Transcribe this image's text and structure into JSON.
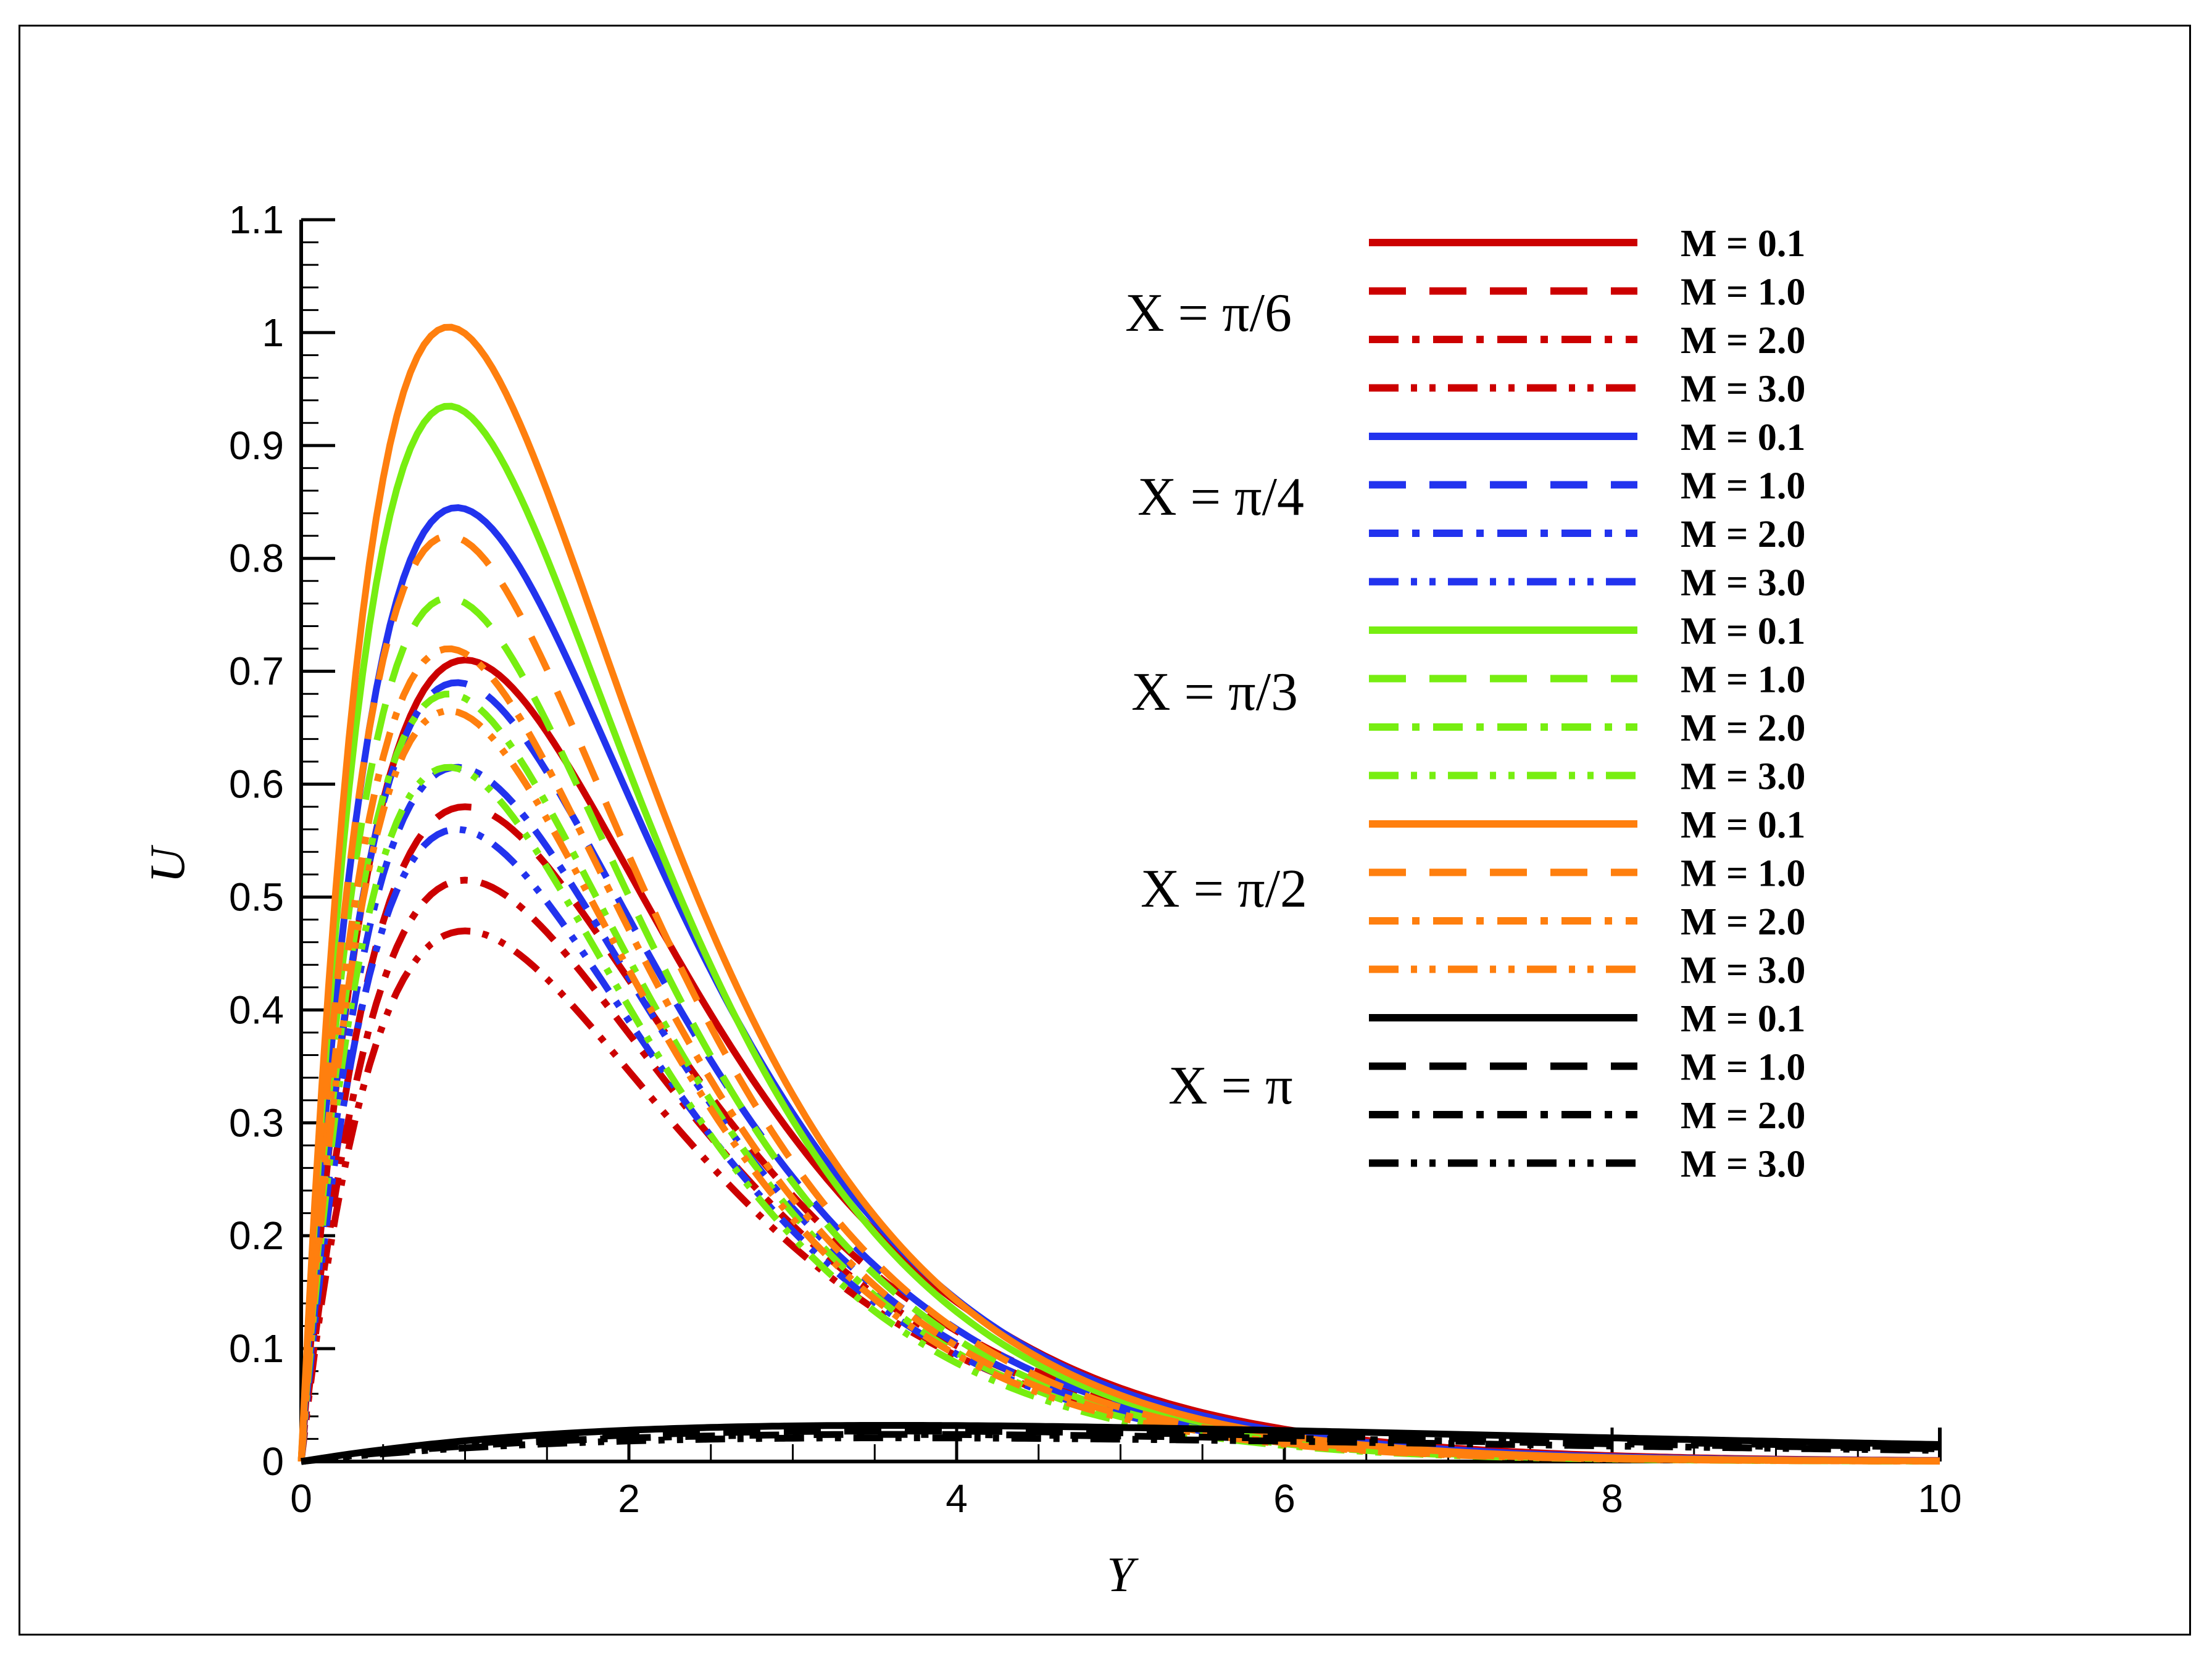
{
  "chart_data": {
    "type": "line",
    "xlabel": "Y",
    "ylabel": "U",
    "xlim": [
      0,
      10
    ],
    "ylim": [
      0,
      1.1
    ],
    "x_ticks": [
      "0",
      "2",
      "4",
      "6",
      "8",
      "10"
    ],
    "y_ticks": [
      "0",
      "0.1",
      "0.2",
      "0.3",
      "0.4",
      "0.5",
      "0.6",
      "0.7",
      "0.8",
      "0.9",
      "1",
      "1.1"
    ],
    "grid": false,
    "legend_position": "top-right",
    "groups": [
      {
        "label": "X = π/6",
        "color": "#cc0000",
        "series": [
          {
            "name": "M = 0.1",
            "style": "solid",
            "peak_x": 1.0,
            "peak_y": 0.71
          },
          {
            "name": "M = 1.0",
            "style": "dash",
            "peak_x": 1.0,
            "peak_y": 0.58
          },
          {
            "name": "M = 2.0",
            "style": "dashdot",
            "peak_x": 1.0,
            "peak_y": 0.515
          },
          {
            "name": "M = 3.0",
            "style": "dashdotdot",
            "peak_x": 1.0,
            "peak_y": 0.47
          }
        ]
      },
      {
        "label": "X = π/4",
        "color": "#2233ee",
        "series": [
          {
            "name": "M = 0.1",
            "style": "solid",
            "peak_x": 0.95,
            "peak_y": 0.845
          },
          {
            "name": "M = 1.0",
            "style": "dash",
            "peak_x": 0.95,
            "peak_y": 0.69
          },
          {
            "name": "M = 2.0",
            "style": "dashdot",
            "peak_x": 0.95,
            "peak_y": 0.615
          },
          {
            "name": "M = 3.0",
            "style": "dashdotdot",
            "peak_x": 0.95,
            "peak_y": 0.56
          }
        ]
      },
      {
        "label": "X = π/3",
        "color": "#77ee11",
        "series": [
          {
            "name": "M = 0.1",
            "style": "solid",
            "peak_x": 0.9,
            "peak_y": 0.935
          },
          {
            "name": "M = 1.0",
            "style": "dash",
            "peak_x": 0.9,
            "peak_y": 0.765
          },
          {
            "name": "M = 2.0",
            "style": "dashdot",
            "peak_x": 0.9,
            "peak_y": 0.68
          },
          {
            "name": "M = 3.0",
            "style": "dashdotdot",
            "peak_x": 0.9,
            "peak_y": 0.615
          }
        ]
      },
      {
        "label": "X = π/2",
        "color": "#ff7f0e",
        "series": [
          {
            "name": "M = 0.1",
            "style": "solid",
            "peak_x": 0.9,
            "peak_y": 1.005
          },
          {
            "name": "M = 1.0",
            "style": "dash",
            "peak_x": 0.9,
            "peak_y": 0.82
          },
          {
            "name": "M = 2.0",
            "style": "dashdot",
            "peak_x": 0.9,
            "peak_y": 0.72
          },
          {
            "name": "M = 3.0",
            "style": "dashdotdot",
            "peak_x": 0.9,
            "peak_y": 0.665
          }
        ]
      },
      {
        "label": "X = π",
        "color": "#000000",
        "series": [
          {
            "name": "M = 0.1",
            "style": "solid",
            "peak_x": 3.6,
            "peak_y": 0.032
          },
          {
            "name": "M = 1.0",
            "style": "dash",
            "peak_x": 3.6,
            "peak_y": 0.027
          },
          {
            "name": "M = 2.0",
            "style": "dashdot",
            "peak_x": 3.6,
            "peak_y": 0.024
          },
          {
            "name": "M = 3.0",
            "style": "dashdotdot",
            "peak_x": 3.6,
            "peak_y": 0.021
          }
        ]
      }
    ]
  }
}
